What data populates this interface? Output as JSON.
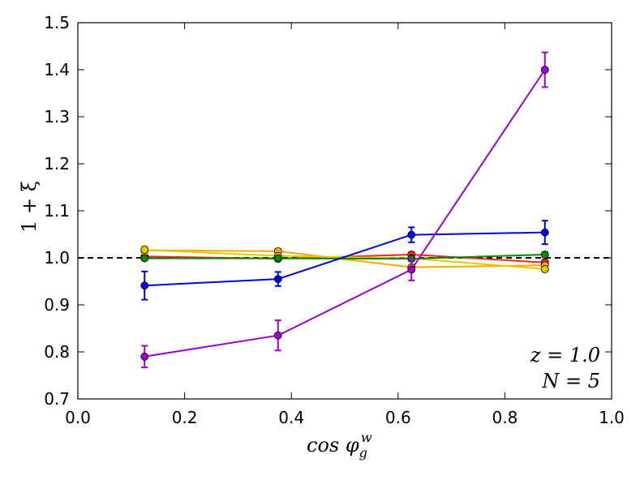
{
  "chart_data": {
    "type": "line",
    "title": "",
    "xlabel": "cos φ",
    "xlabel_sub": "g",
    "xlabel_sup": "w",
    "ylabel": "1 + ξ",
    "xlim": [
      0.0,
      1.0
    ],
    "ylim": [
      0.7,
      1.5
    ],
    "xticks": [
      0.0,
      0.2,
      0.4,
      0.6,
      0.8,
      1.0
    ],
    "yticks": [
      0.7,
      0.8,
      0.9,
      1.0,
      1.1,
      1.2,
      1.3,
      1.4,
      1.5
    ],
    "reference_line": {
      "y": 1.0,
      "style": "dashed",
      "color": "#000000"
    },
    "x": [
      0.125,
      0.375,
      0.625,
      0.875
    ],
    "series": [
      {
        "name": "red",
        "color": "#ff2020",
        "values": [
          1.003,
          0.998,
          1.007,
          0.99
        ],
        "errors": [
          0.004,
          0.004,
          0.005,
          0.006
        ]
      },
      {
        "name": "orange",
        "color": "#ffa500",
        "values": [
          1.016,
          1.014,
          0.98,
          0.984
        ],
        "errors": [
          0.005,
          0.005,
          0.005,
          0.005
        ]
      },
      {
        "name": "yellow",
        "color": "#e8c800",
        "values": [
          1.017,
          1.004,
          0.999,
          0.976
        ],
        "errors": [
          0.008,
          0.005,
          0.005,
          0.006
        ]
      },
      {
        "name": "green",
        "color": "#008800",
        "values": [
          0.999,
          0.999,
          0.998,
          1.007
        ],
        "errors": [
          0.003,
          0.003,
          0.004,
          0.005
        ]
      },
      {
        "name": "blue",
        "color": "#0000e0",
        "values": [
          0.941,
          0.955,
          1.049,
          1.054
        ],
        "errors": [
          0.03,
          0.015,
          0.016,
          0.025
        ]
      },
      {
        "name": "purple",
        "color": "#9b00d3",
        "values": [
          0.79,
          0.835,
          0.975,
          1.4
        ],
        "errors": [
          0.023,
          0.032,
          0.023,
          0.037
        ]
      }
    ],
    "annotations": [
      "z = 1.0",
      "N = 5"
    ]
  }
}
